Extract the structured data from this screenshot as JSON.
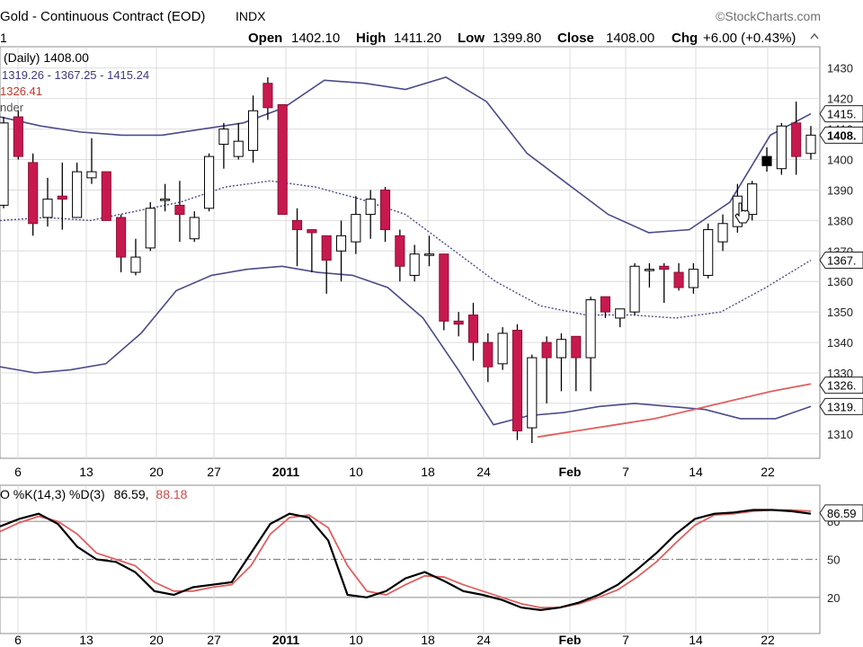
{
  "header": {
    "title": "Gold - Continuous Contract (EOD)",
    "exchange": "INDX",
    "watermark": "©StockCharts.com",
    "period_label": "1",
    "open_label": "Open",
    "open_value": "1402.10",
    "high_label": "High",
    "high_value": "1411.20",
    "low_label": "Low",
    "low_value": "1399.80",
    "close_label": "Close",
    "close_value": "1408.00",
    "chg_label": "Chg",
    "chg_value": "+6.00 (+0.43%)"
  },
  "legend": {
    "price_line": "(Daily) 1408.00",
    "bb_line": "1319.26 - 1367.25 - 1415.24",
    "ma_line": "1326.41",
    "ma_fragment": "nder"
  },
  "stoch_legend": {
    "prefix": "O %K(14,3) %D(3)",
    "k_value": "86.59,",
    "d_value": "88.18"
  },
  "value_tags": {
    "bb_upper": "1415.",
    "price": "1408.",
    "bb_mid": "1367.",
    "ma": "1326.",
    "bb_lower": "1319.",
    "stoch": "86.59"
  },
  "colors": {
    "up_fill": "#ffffff",
    "down_fill": "#c8194f",
    "candle_outline": "#000000",
    "bollinger": "#4b4b8a",
    "moving_average": "#e06060",
    "stoch_k": "#000000",
    "stoch_d": "#e06060",
    "grid": "#dcdcdc"
  },
  "chart_data": [
    {
      "type": "candlestick",
      "title": "Gold - Continuous Contract (EOD)",
      "x_tick_labels": [
        "6",
        "13",
        "20",
        "27",
        "2011",
        "10",
        "18",
        "24",
        "Feb",
        "7",
        "14",
        "22"
      ],
      "y_ticks": [
        1310,
        1320,
        1330,
        1340,
        1350,
        1360,
        1370,
        1380,
        1390,
        1400,
        1410,
        1420,
        1430
      ],
      "ylim": [
        1302,
        1437
      ],
      "grid": true,
      "candles": [
        {
          "o": 1385,
          "h": 1414,
          "l": 1384,
          "c": 1412
        },
        {
          "o": 1414,
          "h": 1416,
          "l": 1400,
          "c": 1401
        },
        {
          "o": 1399,
          "h": 1402,
          "l": 1375,
          "c": 1379
        },
        {
          "o": 1381,
          "h": 1394,
          "l": 1378,
          "c": 1387
        },
        {
          "o": 1388,
          "h": 1399,
          "l": 1377,
          "c": 1387
        },
        {
          "o": 1381,
          "h": 1399,
          "l": 1381,
          "c": 1396
        },
        {
          "o": 1394,
          "h": 1407,
          "l": 1392,
          "c": 1396
        },
        {
          "o": 1396,
          "h": 1395,
          "l": 1380,
          "c": 1380
        },
        {
          "o": 1381,
          "h": 1382,
          "l": 1363,
          "c": 1368
        },
        {
          "o": 1363,
          "h": 1374,
          "l": 1362,
          "c": 1368
        },
        {
          "o": 1371,
          "h": 1386,
          "l": 1370,
          "c": 1384
        },
        {
          "o": 1387,
          "h": 1392,
          "l": 1383,
          "c": 1387
        },
        {
          "o": 1385,
          "h": 1393,
          "l": 1373,
          "c": 1382
        },
        {
          "o": 1374,
          "h": 1383,
          "l": 1373,
          "c": 1381
        },
        {
          "o": 1384,
          "h": 1402,
          "l": 1383,
          "c": 1401
        },
        {
          "o": 1405,
          "h": 1412,
          "l": 1397,
          "c": 1410
        },
        {
          "o": 1401,
          "h": 1412,
          "l": 1400,
          "c": 1406
        },
        {
          "o": 1403,
          "h": 1421,
          "l": 1399,
          "c": 1416
        },
        {
          "o": 1425,
          "h": 1427,
          "l": 1413,
          "c": 1417
        },
        {
          "o": 1418,
          "h": 1418,
          "l": 1382,
          "c": 1382
        },
        {
          "o": 1380,
          "h": 1384,
          "l": 1365,
          "c": 1377
        },
        {
          "o": 1377,
          "h": 1377,
          "l": 1363,
          "c": 1376
        },
        {
          "o": 1375,
          "h": 1375,
          "l": 1356,
          "c": 1367
        },
        {
          "o": 1370,
          "h": 1380,
          "l": 1360,
          "c": 1375
        },
        {
          "o": 1373,
          "h": 1388,
          "l": 1369,
          "c": 1382
        },
        {
          "o": 1382,
          "h": 1390,
          "l": 1374,
          "c": 1387
        },
        {
          "o": 1390,
          "h": 1391,
          "l": 1373,
          "c": 1377
        },
        {
          "o": 1375,
          "h": 1377,
          "l": 1360,
          "c": 1365
        },
        {
          "o": 1362,
          "h": 1372,
          "l": 1360,
          "c": 1369
        },
        {
          "o": 1369,
          "h": 1375,
          "l": 1365,
          "c": 1369
        },
        {
          "o": 1369,
          "h": 1369,
          "l": 1344,
          "c": 1347
        },
        {
          "o": 1347,
          "h": 1350,
          "l": 1342,
          "c": 1346
        },
        {
          "o": 1349,
          "h": 1353,
          "l": 1334,
          "c": 1340
        },
        {
          "o": 1340,
          "h": 1343,
          "l": 1327,
          "c": 1332
        },
        {
          "o": 1333,
          "h": 1345,
          "l": 1331,
          "c": 1343
        },
        {
          "o": 1344,
          "h": 1346,
          "l": 1308,
          "c": 1311
        },
        {
          "o": 1312,
          "h": 1336,
          "l": 1307,
          "c": 1335
        },
        {
          "o": 1340,
          "h": 1342,
          "l": 1320,
          "c": 1335
        },
        {
          "o": 1335,
          "h": 1343,
          "l": 1324,
          "c": 1341
        },
        {
          "o": 1342,
          "h": 1342,
          "l": 1324,
          "c": 1335
        },
        {
          "o": 1335,
          "h": 1355,
          "l": 1324,
          "c": 1354
        },
        {
          "o": 1355,
          "h": 1355,
          "l": 1348,
          "c": 1350
        },
        {
          "o": 1348,
          "h": 1351,
          "l": 1345,
          "c": 1351
        },
        {
          "o": 1350,
          "h": 1366,
          "l": 1349,
          "c": 1365
        },
        {
          "o": 1364,
          "h": 1366,
          "l": 1358,
          "c": 1364
        },
        {
          "o": 1365,
          "h": 1366,
          "l": 1353,
          "c": 1364
        },
        {
          "o": 1363,
          "h": 1366,
          "l": 1357,
          "c": 1358
        },
        {
          "o": 1358,
          "h": 1366,
          "l": 1356,
          "c": 1364
        },
        {
          "o": 1362,
          "h": 1379,
          "l": 1361,
          "c": 1377
        },
        {
          "o": 1373,
          "h": 1382,
          "l": 1370,
          "c": 1379
        },
        {
          "o": 1378,
          "h": 1392,
          "l": 1376,
          "c": 1388
        },
        {
          "o": 1382,
          "h": 1393,
          "l": 1380,
          "c": 1392
        },
        {
          "o": 1401,
          "h": 1404,
          "l": 1396,
          "c": 1398
        },
        {
          "o": 1397,
          "h": 1412,
          "l": 1395,
          "c": 1411
        },
        {
          "o": 1412,
          "h": 1419,
          "l": 1395,
          "c": 1401
        },
        {
          "o": 1402,
          "h": 1411,
          "l": 1400,
          "c": 1408
        }
      ],
      "bollinger_upper": [
        1414,
        1411,
        1409,
        1408,
        1408,
        1410,
        1412,
        1417,
        1426,
        1425,
        1423,
        1427,
        1419,
        1402,
        1392,
        1382,
        1376,
        1377,
        1386,
        1408,
        1415
      ],
      "bollinger_middle": [
        1380,
        1381,
        1380,
        1383,
        1386,
        1391,
        1393,
        1391,
        1387,
        1382,
        1371,
        1360,
        1352,
        1349,
        1349,
        1348,
        1350,
        1358,
        1367
      ],
      "bollinger_lower": [
        1332,
        1330,
        1331,
        1333,
        1343,
        1357,
        1362,
        1364,
        1365,
        1363,
        1362,
        1358,
        1348,
        1331,
        1313,
        1316,
        1317,
        1319,
        1320,
        1319,
        1318,
        1315,
        1315,
        1319
      ],
      "moving_average": [
        1309,
        1311,
        1313,
        1315,
        1318,
        1321,
        1324,
        1326.4
      ]
    },
    {
      "type": "line",
      "title": "O %K(14,3) %D(3)",
      "x_tick_labels": [
        "6",
        "13",
        "20",
        "27",
        "2011",
        "10",
        "18",
        "24",
        "Feb",
        "7",
        "14",
        "22"
      ],
      "y_ticks": [
        20,
        50,
        80
      ],
      "ylim": [
        0,
        100
      ],
      "reference_lines": [
        20,
        50,
        80
      ],
      "series": [
        {
          "name": "%K(14,3)",
          "values": [
            76,
            82,
            86,
            78,
            60,
            50,
            48,
            40,
            25,
            22,
            28,
            30,
            32,
            55,
            78,
            86,
            83,
            65,
            22,
            20,
            25,
            35,
            40,
            33,
            25,
            22,
            18,
            12,
            10,
            12,
            16,
            22,
            30,
            42,
            55,
            70,
            82,
            86,
            87,
            89,
            89,
            88,
            86
          ]
        },
        {
          "name": "%D(3)",
          "values": [
            72,
            79,
            84,
            80,
            70,
            55,
            50,
            45,
            32,
            25,
            25,
            28,
            30,
            45,
            70,
            83,
            85,
            75,
            45,
            25,
            22,
            30,
            37,
            36,
            30,
            25,
            20,
            15,
            12,
            12,
            15,
            20,
            26,
            36,
            48,
            63,
            77,
            85,
            86,
            88,
            89,
            89,
            88
          ]
        }
      ],
      "last_values": {
        "k": 86.59,
        "d": 88.18
      }
    }
  ]
}
